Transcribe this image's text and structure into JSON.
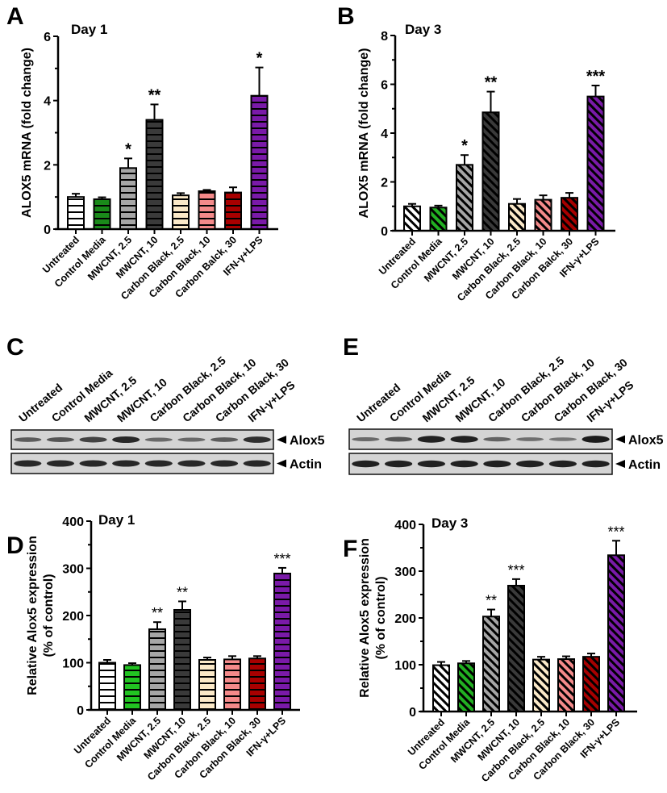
{
  "figure": {
    "categories": [
      "Untreated",
      "Control Media",
      "MWCNT, 2.5",
      "MWCNT, 10",
      "Carbon Black, 2.5",
      "Carbon Black, 10",
      "Carbon Black, 30",
      "IFN-γ+LPS"
    ],
    "categories_ab": [
      "Untreated",
      "Control Media",
      "MWCNT, 2.5",
      "MWCNT, 10",
      "Carbon Black, 2.5",
      "Carbon Black, 10",
      "Carbon Balck, 30",
      "IFN-γ+LPS"
    ],
    "colors": {
      "day1_mrna": [
        "#ffffff",
        "#1a8a1a",
        "#a6a6a6",
        "#3a3a3a",
        "#fbe9c8",
        "#f48a8a",
        "#a80000",
        "#7a1aa8"
      ],
      "day1_protein": [
        "#ffffff",
        "#22c322",
        "#a6a6a6",
        "#3a3a3a",
        "#fbe9c8",
        "#f48a8a",
        "#a80000",
        "#7a1aa8"
      ],
      "day3": [
        "#ffffff",
        "#22b022",
        "#a6a6a6",
        "#3a3a3a",
        "#fbe9c8",
        "#f48a8a",
        "#a80000",
        "#7a1aa8"
      ]
    },
    "blots": [
      {
        "panel_label": "C",
        "lane_labels": [
          "Untreated",
          "Control Media",
          "MWCNT, 2.5",
          "MWCNT, 10",
          "Carbon Black, 2.5",
          "Carbon Black, 10",
          "Carbon Black, 30",
          "IFN-γ+LPS"
        ],
        "rows": [
          {
            "label": "Alox5",
            "intensity": [
              0.45,
              0.5,
              0.65,
              0.85,
              0.35,
              0.35,
              0.45,
              0.8
            ]
          },
          {
            "label": "Actin",
            "intensity": [
              0.85,
              0.85,
              0.85,
              0.85,
              0.85,
              0.85,
              0.85,
              0.85
            ]
          }
        ]
      },
      {
        "panel_label": "E",
        "lane_labels": [
          "Untreated",
          "Control Media",
          "MWCNT, 2.5",
          "MWCNT, 10",
          "Carbon Black, 2.5",
          "Carbon Black, 10",
          "Carbon Black, 30",
          "IFN-γ+LPS"
        ],
        "rows": [
          {
            "label": "Alox5",
            "intensity": [
              0.35,
              0.5,
              0.9,
              0.9,
              0.4,
              0.3,
              0.25,
              0.95
            ]
          },
          {
            "label": "Actin",
            "intensity": [
              0.9,
              0.9,
              0.9,
              0.9,
              0.9,
              0.9,
              0.9,
              0.9
            ]
          }
        ]
      }
    ]
  },
  "chart_data": [
    {
      "panel_label": "A",
      "type": "bar",
      "title": "Day 1",
      "xlabel": "",
      "ylabel": "ALOX5 mRNA (fold change)",
      "ylim": [
        0,
        6
      ],
      "yticks": [
        0,
        2,
        4,
        6
      ],
      "pattern": "horizontal-stripes",
      "categories": [
        "Untreated",
        "Control Media",
        "MWCNT, 2.5",
        "MWCNT, 10",
        "Carbon Black, 2.5",
        "Carbon Black, 10",
        "Carbon Balck, 30",
        "IFN-γ+LPS"
      ],
      "values": [
        1.0,
        0.93,
        1.9,
        3.4,
        1.05,
        1.18,
        1.14,
        4.15
      ],
      "error_upper": [
        1.1,
        0.99,
        2.2,
        3.88,
        1.12,
        1.22,
        1.3,
        5.03
      ],
      "significance": [
        "",
        "",
        "*",
        "**",
        "",
        "",
        "",
        "*"
      ]
    },
    {
      "panel_label": "B",
      "type": "bar",
      "title": "Day 3",
      "xlabel": "",
      "ylabel": "ALOX5 mRNA (fold change)",
      "ylim": [
        0,
        8
      ],
      "yticks": [
        0,
        2,
        4,
        6,
        8
      ],
      "pattern": "diagonal-stripes",
      "categories": [
        "Untreated",
        "Control Media",
        "MWCNT, 2.5",
        "MWCNT, 10",
        "Carbon Black, 2.5",
        "Carbon Black, 10",
        "Carbon Balck, 30",
        "IFN-γ+LPS"
      ],
      "values": [
        1.0,
        0.95,
        2.7,
        4.85,
        1.1,
        1.27,
        1.35,
        5.5
      ],
      "error_upper": [
        1.1,
        1.03,
        3.1,
        5.7,
        1.3,
        1.45,
        1.55,
        5.95
      ],
      "significance": [
        "",
        "",
        "*",
        "**",
        "",
        "",
        "",
        "***"
      ]
    },
    {
      "panel_label": "D",
      "type": "bar",
      "title": "Day 1",
      "xlabel": "",
      "ylabel": "Relative Alox5 expression (% of control)",
      "ylabel_lines": [
        "Relative Alox5 expression",
        "(% of control)"
      ],
      "ylim": [
        0,
        400
      ],
      "yticks": [
        0,
        100,
        200,
        300,
        400
      ],
      "pattern": "horizontal-stripes",
      "categories": [
        "Untreated",
        "Control Media",
        "MWCNT, 2.5",
        "MWCNT, 10",
        "Carbon Black, 2.5",
        "Carbon Black, 10",
        "Carbon Black, 30",
        "IFN-γ+LPS"
      ],
      "values": [
        100,
        95,
        171,
        212,
        106,
        107,
        109,
        289
      ],
      "error_upper": [
        106,
        99,
        186,
        230,
        111,
        114,
        114,
        301
      ],
      "significance": [
        "",
        "",
        "**",
        "**",
        "",
        "",
        "",
        "***"
      ]
    },
    {
      "panel_label": "F",
      "type": "bar",
      "title": "Day 3",
      "xlabel": "",
      "ylabel": "Relative Alox5 expression (% of control)",
      "ylabel_lines": [
        "Relative Alox5 expression",
        "(% of control)"
      ],
      "ylim": [
        0,
        400
      ],
      "yticks": [
        0,
        100,
        200,
        300,
        400
      ],
      "pattern": "diagonal-stripes",
      "categories": [
        "Untreated",
        "Control Media",
        "MWCNT, 2.5",
        "MWCNT, 10",
        "Carbon Black, 2.5",
        "Carbon Black, 10",
        "Carbon Black, 30",
        "IFN-γ+LPS"
      ],
      "values": [
        99,
        103,
        203,
        269,
        111,
        112,
        117,
        334
      ],
      "error_upper": [
        106,
        108,
        218,
        283,
        117,
        118,
        124,
        365
      ],
      "significance": [
        "",
        "",
        "**",
        "***",
        "",
        "",
        "",
        "***"
      ]
    }
  ]
}
